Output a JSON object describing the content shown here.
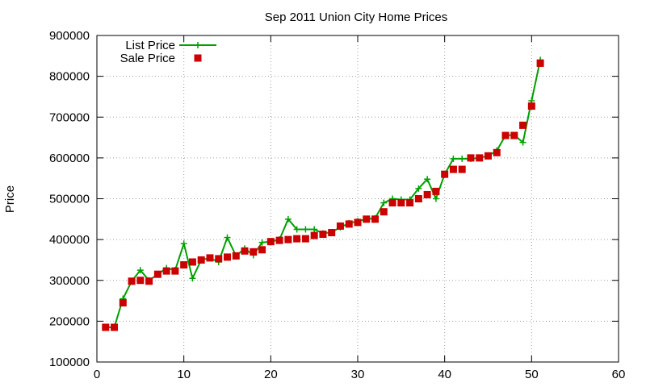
{
  "chart_data": {
    "type": "line",
    "title": "Sep 2011 Union City Home Prices",
    "xlabel": "",
    "ylabel": "Price",
    "xlim": [
      0,
      60
    ],
    "ylim": [
      100000,
      900000
    ],
    "x_ticks": [
      0,
      10,
      20,
      30,
      40,
      50,
      60
    ],
    "y_ticks": [
      100000,
      200000,
      300000,
      400000,
      500000,
      600000,
      700000,
      800000,
      900000
    ],
    "grid": true,
    "legend_position": "top-left",
    "colors": {
      "list_price": "#00a000",
      "sale_price": "#cc0000"
    },
    "series": [
      {
        "name": "List Price",
        "style": "line-plus",
        "x": [
          1,
          2,
          3,
          4,
          5,
          6,
          7,
          8,
          9,
          10,
          11,
          12,
          13,
          14,
          15,
          16,
          17,
          18,
          19,
          20,
          21,
          22,
          23,
          24,
          25,
          26,
          27,
          28,
          29,
          30,
          31,
          32,
          33,
          34,
          35,
          36,
          37,
          38,
          39,
          40,
          41,
          42,
          43,
          44,
          45,
          46,
          47,
          48,
          49,
          50,
          51
        ],
        "y": [
          185000,
          185000,
          255000,
          298000,
          325000,
          300000,
          315000,
          330000,
          325000,
          390000,
          305000,
          350000,
          355000,
          345000,
          405000,
          360000,
          378000,
          362000,
          393000,
          395000,
          400000,
          450000,
          425000,
          425000,
          425000,
          415000,
          418000,
          430000,
          440000,
          445000,
          450000,
          452000,
          490000,
          500000,
          498000,
          498000,
          525000,
          548000,
          500000,
          560000,
          598000,
          598000,
          598000,
          600000,
          605000,
          618000,
          655000,
          656000,
          638000,
          740000,
          840000
        ]
      },
      {
        "name": "Sale Price",
        "style": "square",
        "x": [
          1,
          2,
          3,
          4,
          5,
          6,
          7,
          8,
          9,
          10,
          11,
          12,
          13,
          14,
          15,
          16,
          17,
          18,
          19,
          20,
          21,
          22,
          23,
          24,
          25,
          26,
          27,
          28,
          29,
          30,
          31,
          32,
          33,
          34,
          35,
          36,
          37,
          38,
          39,
          40,
          41,
          42,
          43,
          44,
          45,
          46,
          47,
          48,
          49,
          50,
          51
        ],
        "y": [
          185000,
          185000,
          245000,
          298000,
          300000,
          298000,
          315000,
          323000,
          323000,
          338000,
          345000,
          350000,
          355000,
          353000,
          357000,
          360000,
          372000,
          370000,
          375000,
          395000,
          398000,
          400000,
          402000,
          402000,
          410000,
          413000,
          417000,
          433000,
          438000,
          442000,
          450000,
          450000,
          468000,
          490000,
          490000,
          490000,
          500000,
          510000,
          518000,
          560000,
          572000,
          572000,
          600000,
          600000,
          605000,
          613000,
          655000,
          655000,
          680000,
          727000,
          832000
        ]
      }
    ]
  }
}
